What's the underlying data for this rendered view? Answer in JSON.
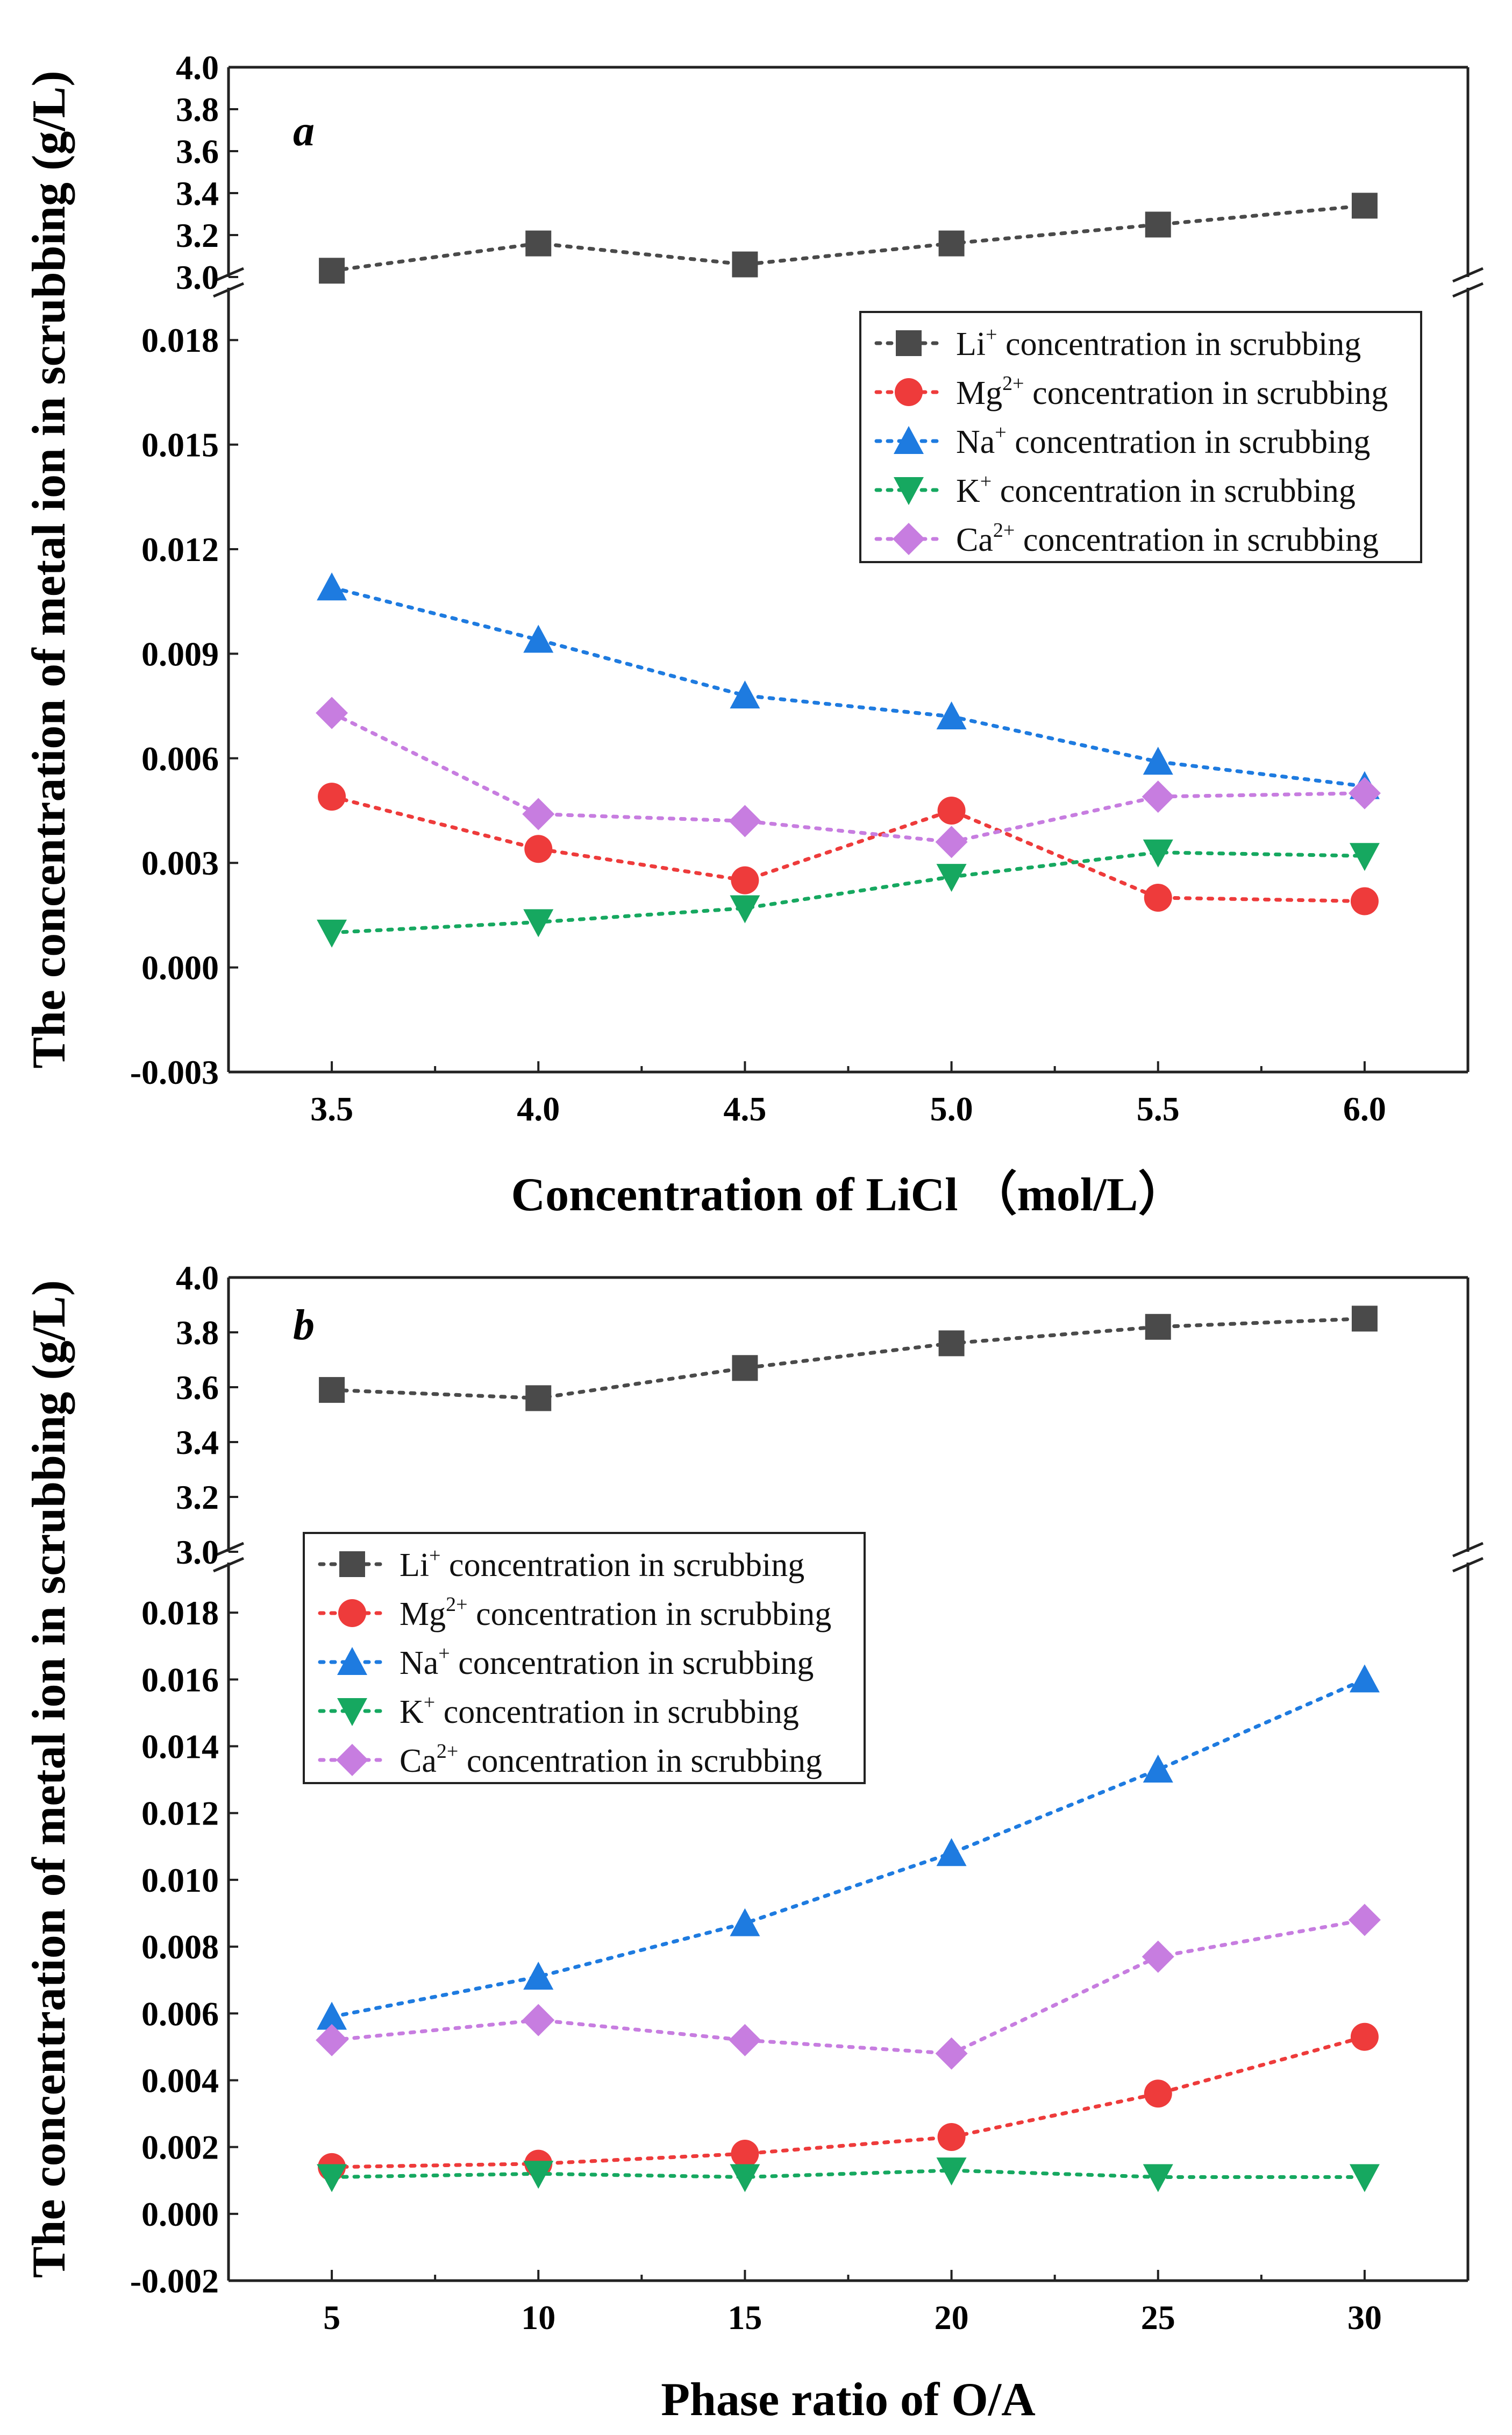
{
  "colors": {
    "Li": "#4a4a4a",
    "Mg": "#ee3b3b",
    "Na": "#1e7be0",
    "K": "#16a860",
    "Ca": "#c77de0",
    "axis": "#222222"
  },
  "chart_data": [
    {
      "id": "a",
      "type": "line",
      "panel_letter": "a",
      "title": "",
      "xlabel": "Concentration of LiCl （mol/L）",
      "ylabel": "The concentration of metal ion in scrubbing (g/L)",
      "categories": [
        "3.5",
        "4.0",
        "4.5",
        "5.0",
        "5.5",
        "6.0"
      ],
      "x": [
        3.5,
        4.0,
        4.5,
        5.0,
        5.5,
        6.0
      ],
      "xlim": [
        3.25,
        6.25
      ],
      "upper_axis": {
        "ylim": [
          3.0,
          4.0
        ],
        "ticks": [
          3.0,
          3.2,
          3.4,
          3.6,
          3.8,
          4.0
        ],
        "tick_labels": [
          "3.0",
          "3.2",
          "3.4",
          "3.6",
          "3.8",
          "4.0"
        ]
      },
      "lower_axis": {
        "ylim": [
          -0.003,
          0.0195
        ],
        "ticks": [
          -0.003,
          0.0,
          0.003,
          0.006,
          0.009,
          0.012,
          0.015,
          0.018
        ],
        "tick_labels": [
          "-0.003",
          "0.000",
          "0.003",
          "0.006",
          "0.009",
          "0.012",
          "0.015",
          "0.018"
        ]
      },
      "legend_position": "top-right",
      "series": [
        {
          "key": "Li",
          "ion": "Li",
          "charge": "+",
          "label_rest": " concentration in scrubbing",
          "marker": "square",
          "axis": "upper",
          "values": [
            3.03,
            3.16,
            3.06,
            3.16,
            3.25,
            3.34
          ]
        },
        {
          "key": "Mg",
          "ion": "Mg",
          "charge": "2+",
          "label_rest": " concentration in scrubbing",
          "marker": "circle",
          "axis": "lower",
          "values": [
            0.0049,
            0.0034,
            0.0025,
            0.0045,
            0.002,
            0.0019
          ]
        },
        {
          "key": "Na",
          "ion": "Na",
          "charge": "+",
          "label_rest": " concentration in scrubbing",
          "marker": "triangle-up",
          "axis": "lower",
          "values": [
            0.0109,
            0.0094,
            0.0078,
            0.0072,
            0.0059,
            0.0052
          ]
        },
        {
          "key": "K",
          "ion": "K",
          "charge": "+",
          "label_rest": " concentration in scrubbing",
          "marker": "triangle-down",
          "axis": "lower",
          "values": [
            0.001,
            0.0013,
            0.0017,
            0.0026,
            0.0033,
            0.0032
          ]
        },
        {
          "key": "Ca",
          "ion": "Ca",
          "charge": "2+",
          "label_rest": " concentration in scrubbing",
          "marker": "diamond",
          "axis": "lower",
          "values": [
            0.0073,
            0.0044,
            0.0042,
            0.0036,
            0.0049,
            0.005
          ]
        }
      ]
    },
    {
      "id": "b",
      "type": "line",
      "panel_letter": "b",
      "title": "",
      "xlabel": "Phase ratio of O/A",
      "ylabel": "The concentration of metal ion in scrubbing (g/L)",
      "categories": [
        "5",
        "10",
        "15",
        "20",
        "25",
        "30"
      ],
      "x": [
        5,
        10,
        15,
        20,
        25,
        30
      ],
      "xlim": [
        2.5,
        32.5
      ],
      "upper_axis": {
        "ylim": [
          3.0,
          4.0
        ],
        "ticks": [
          3.0,
          3.2,
          3.4,
          3.6,
          3.8,
          4.0
        ],
        "tick_labels": [
          "3.0",
          "3.2",
          "3.4",
          "3.6",
          "3.8",
          "4.0"
        ]
      },
      "lower_axis": {
        "ylim": [
          -0.002,
          0.0195
        ],
        "ticks": [
          -0.002,
          0.0,
          0.002,
          0.004,
          0.006,
          0.008,
          0.01,
          0.012,
          0.014,
          0.016,
          0.018
        ],
        "tick_labels": [
          "-0.002",
          "0.000",
          "0.002",
          "0.004",
          "0.006",
          "0.008",
          "0.010",
          "0.012",
          "0.014",
          "0.016",
          "0.018"
        ]
      },
      "legend_position": "top-left",
      "series": [
        {
          "key": "Li",
          "ion": "Li",
          "charge": "+",
          "label_rest": " concentration in scrubbing",
          "marker": "square",
          "axis": "upper",
          "values": [
            3.59,
            3.56,
            3.67,
            3.76,
            3.82,
            3.85
          ]
        },
        {
          "key": "Mg",
          "ion": "Mg",
          "charge": "2+",
          "label_rest": " concentration in scrubbing",
          "marker": "circle",
          "axis": "lower",
          "values": [
            0.0014,
            0.0015,
            0.0018,
            0.0023,
            0.0036,
            0.0053
          ]
        },
        {
          "key": "Na",
          "ion": "Na",
          "charge": "+",
          "label_rest": " concentration in scrubbing",
          "marker": "triangle-up",
          "axis": "lower",
          "values": [
            0.0059,
            0.0071,
            0.0087,
            0.0108,
            0.0133,
            0.016
          ]
        },
        {
          "key": "K",
          "ion": "K",
          "charge": "+",
          "label_rest": " concentration in scrubbing",
          "marker": "triangle-down",
          "axis": "lower",
          "values": [
            0.0011,
            0.0012,
            0.0011,
            0.0013,
            0.0011,
            0.0011
          ]
        },
        {
          "key": "Ca",
          "ion": "Ca",
          "charge": "2+",
          "label_rest": " concentration in scrubbing",
          "marker": "diamond",
          "axis": "lower",
          "values": [
            0.0052,
            0.0058,
            0.0052,
            0.0048,
            0.0077,
            0.0088
          ]
        }
      ]
    }
  ]
}
